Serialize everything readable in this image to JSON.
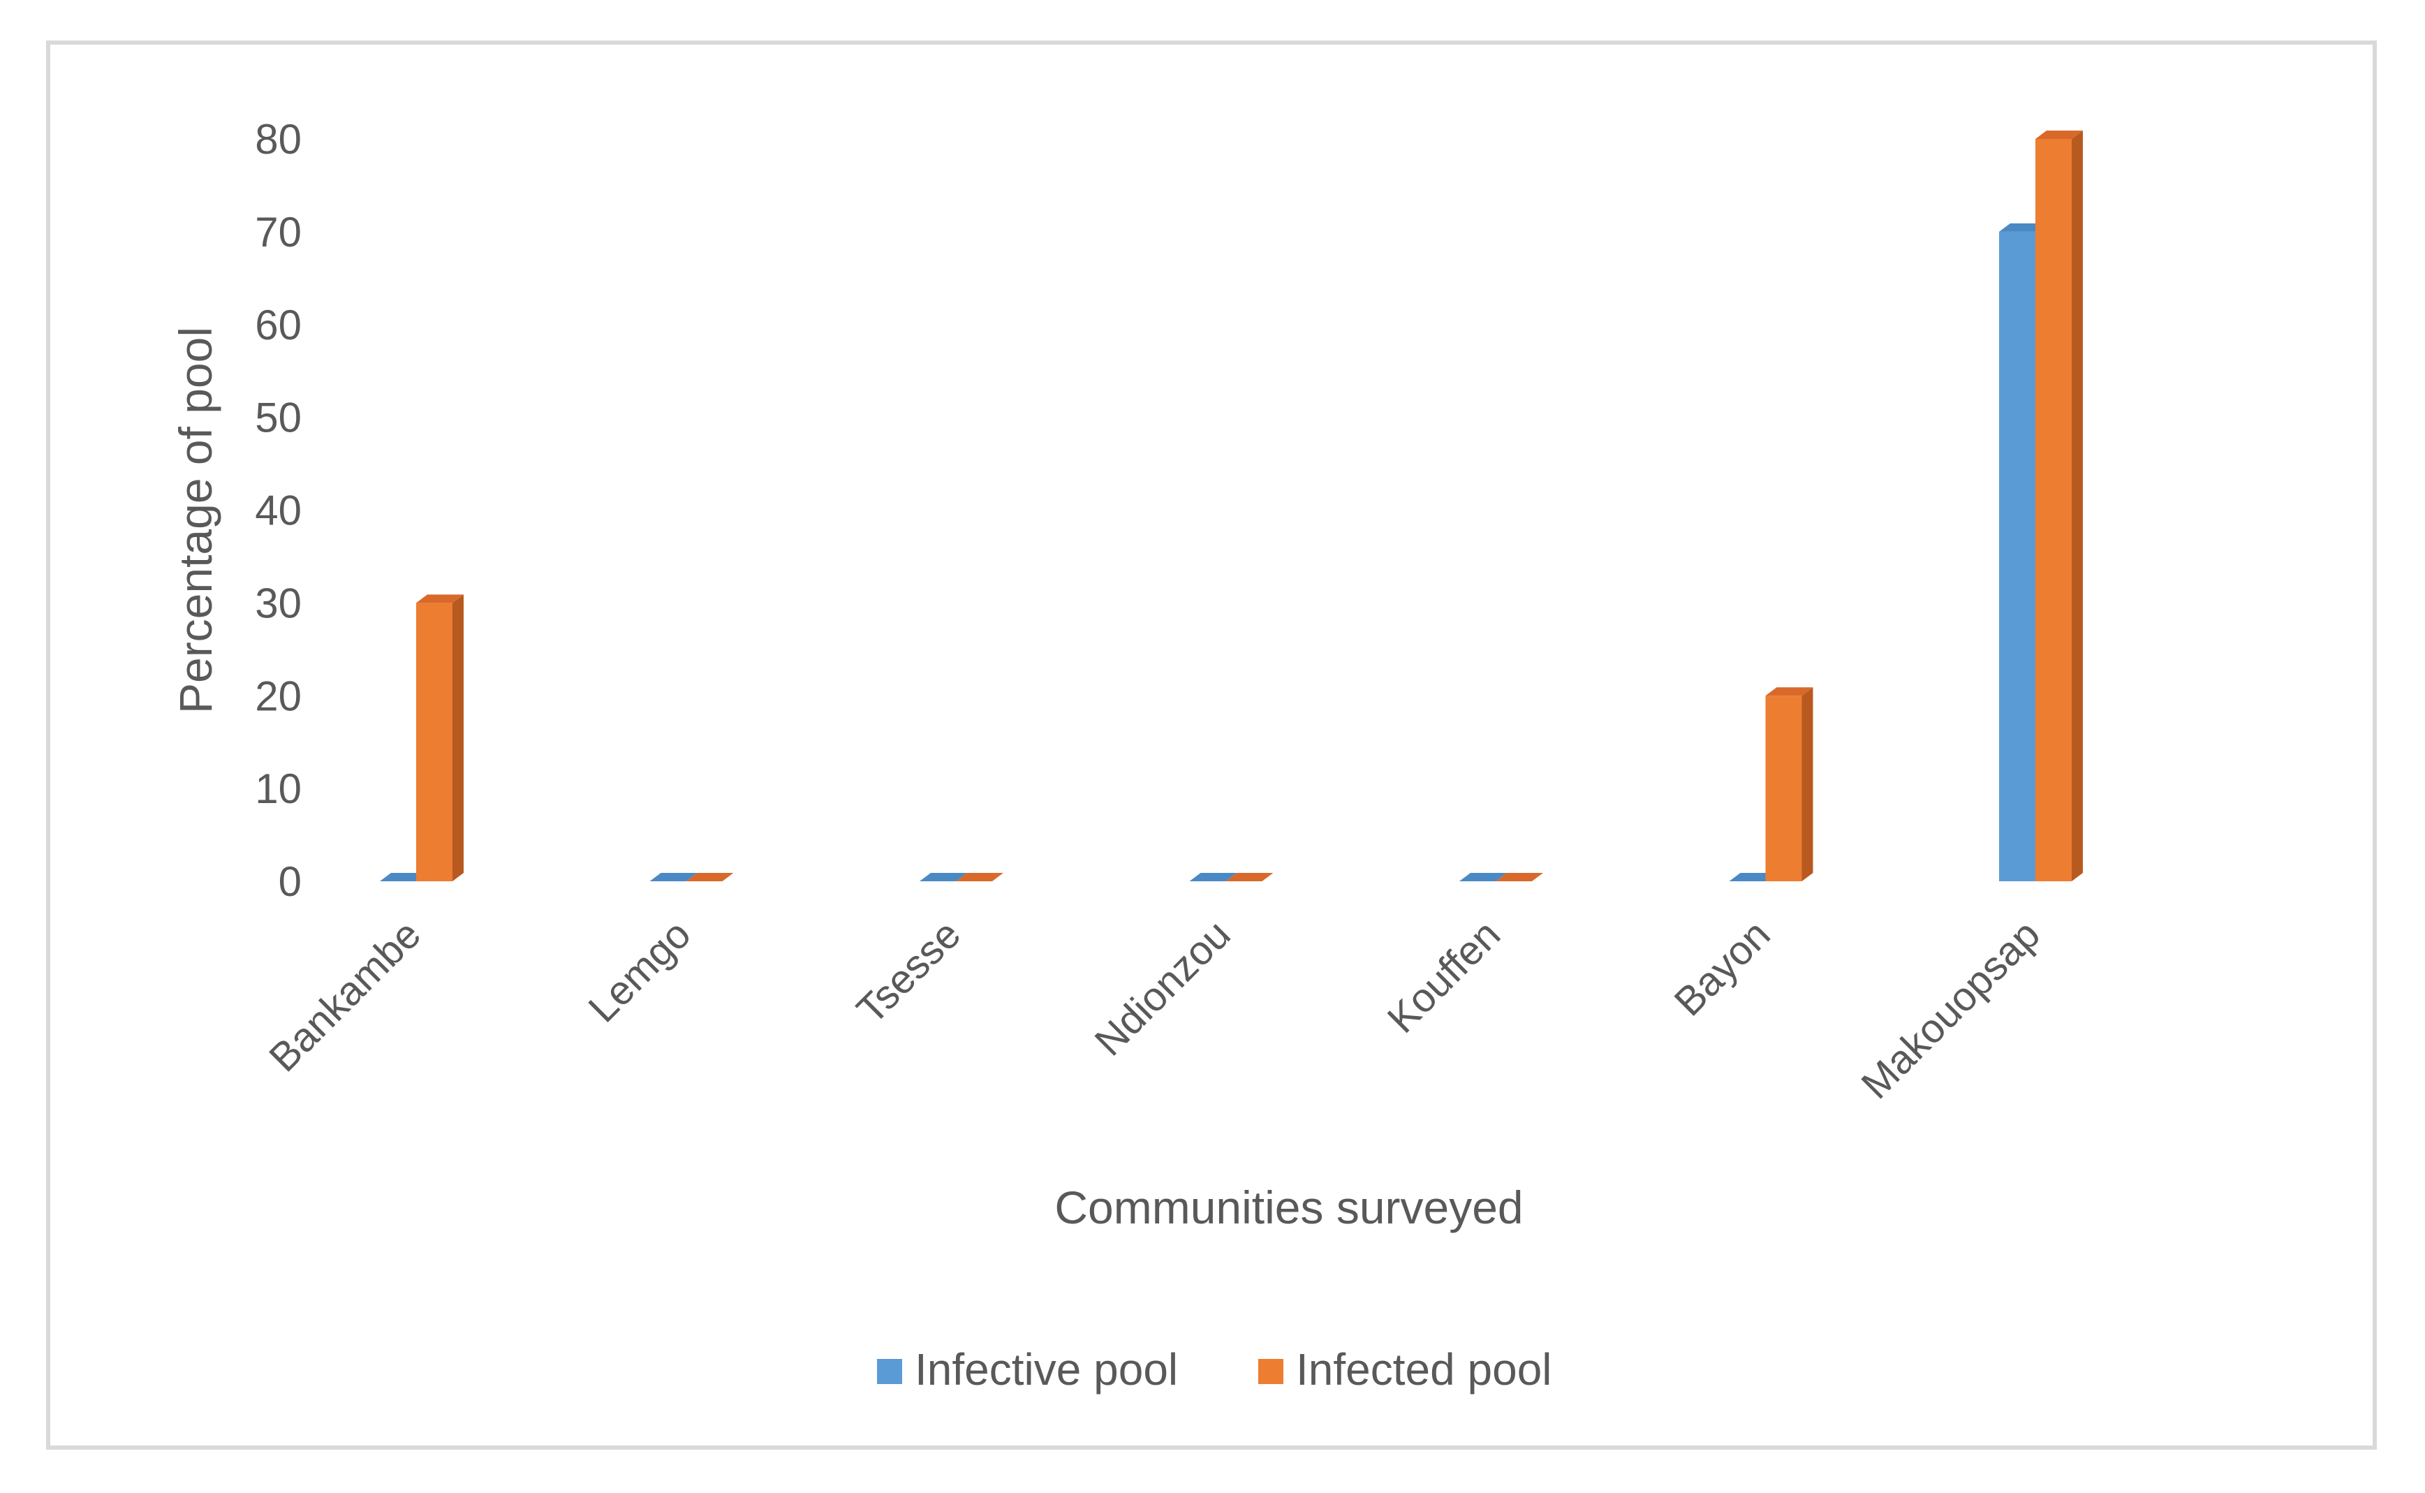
{
  "chart_data": {
    "type": "bar",
    "style": "3d-clustered-column",
    "title": "",
    "xlabel": "Communities surveyed",
    "ylabel": "Percentage of pool",
    "ylim": [
      0,
      80
    ],
    "yticks": [
      0,
      10,
      20,
      30,
      40,
      50,
      60,
      70,
      80
    ],
    "categories": [
      "Bankambe",
      "Lemgo",
      "Tsesse",
      "Ndionzou",
      "Kouffen",
      "Bayon",
      "Makouopsap"
    ],
    "series": [
      {
        "name": "Infective pool",
        "values": [
          0,
          0,
          0,
          0,
          0,
          0,
          70
        ]
      },
      {
        "name": "Infected pool",
        "values": [
          30,
          0,
          0,
          0,
          0,
          20,
          80
        ]
      }
    ],
    "legend_position": "bottom",
    "colors": {
      "Infective pool": {
        "front": "#5b9bd5",
        "top": "#4a89c4",
        "side": "#3f75a8"
      },
      "Infected pool": {
        "front": "#ed7d31",
        "top": "#d9692a",
        "side": "#b85a20"
      }
    }
  }
}
